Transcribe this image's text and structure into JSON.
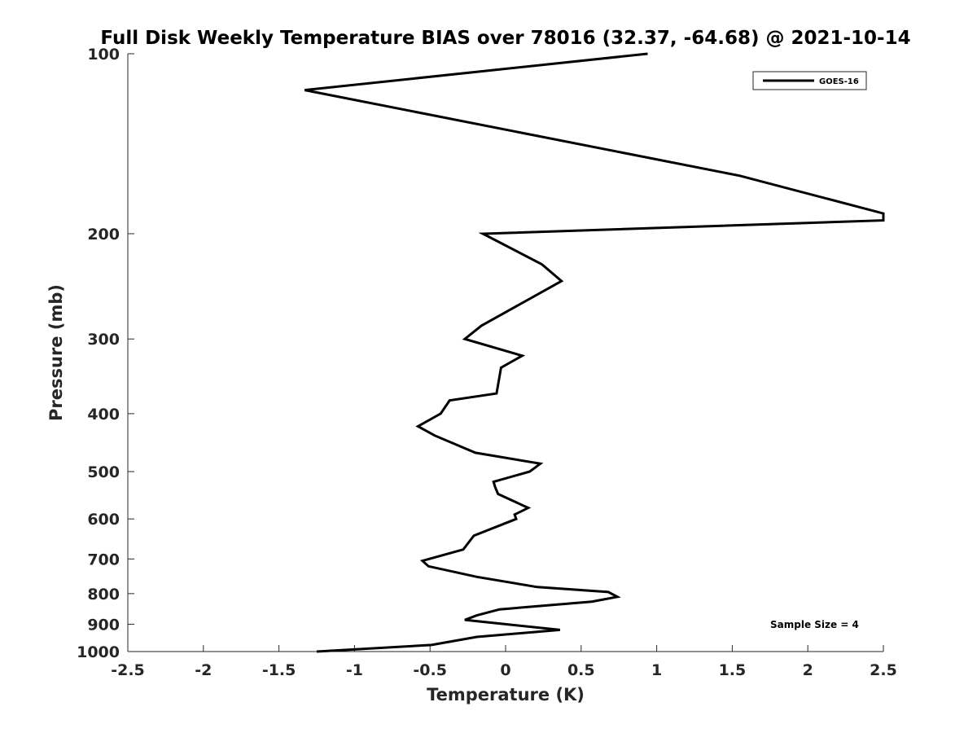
{
  "chart_data": {
    "type": "line",
    "title": "Full Disk Weekly Temperature BIAS over 78016 (32.37, -64.68) @ 2021-10-14",
    "xlabel": "Temperature (K)",
    "ylabel": "Pressure (mb)",
    "xlim": [
      -2.5,
      2.5
    ],
    "ylim": [
      100,
      1000
    ],
    "yscale": "log",
    "y_reversed": true,
    "grid": false,
    "legend_position": "top-right",
    "x_ticks": [
      "-2.5",
      "-2",
      "-1.5",
      "-1",
      "-0.5",
      "0",
      "0.5",
      "1",
      "1.5",
      "2",
      "2.5"
    ],
    "y_ticks": [
      "100",
      "200",
      "300",
      "400",
      "500",
      "600",
      "700",
      "800",
      "900",
      "1000"
    ],
    "annotation": "Sample Size = 4",
    "series": [
      {
        "name": "GOES-16",
        "color": "#000000",
        "x": [
          0.94,
          -1.33,
          1.55,
          2.5,
          2.5,
          -0.15,
          0.24,
          0.37,
          -0.16,
          -0.27,
          0.11,
          -0.03,
          -0.06,
          -0.37,
          -0.43,
          -0.58,
          -0.47,
          -0.2,
          0.23,
          0.16,
          -0.08,
          -0.07,
          -0.05,
          0.15,
          0.06,
          0.07,
          -0.21,
          -0.28,
          -0.55,
          -0.51,
          -0.19,
          0.21,
          0.68,
          0.74,
          0.57,
          -0.04,
          -0.19,
          -0.27,
          0.36,
          -0.19,
          -0.49,
          -1.25
        ],
        "y": [
          100,
          115,
          160,
          185,
          190,
          200,
          225,
          240,
          285,
          300,
          320,
          335,
          370,
          380,
          400,
          420,
          435,
          465,
          485,
          500,
          520,
          530,
          545,
          575,
          590,
          600,
          640,
          675,
          705,
          720,
          750,
          780,
          795,
          810,
          825,
          850,
          870,
          885,
          920,
          945,
          975,
          1000
        ]
      }
    ]
  }
}
